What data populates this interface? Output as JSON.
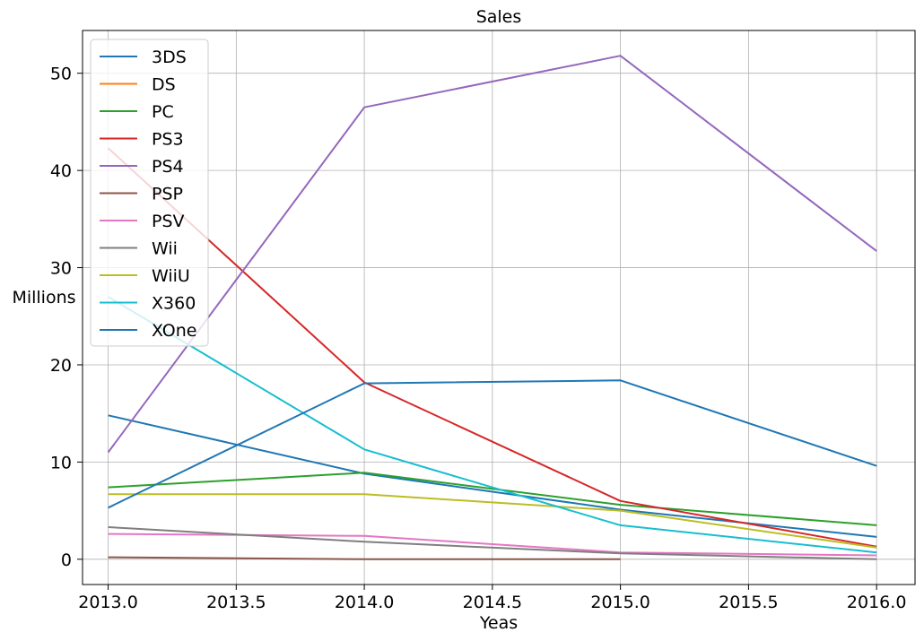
{
  "chart_data": {
    "type": "line",
    "title": "Sales",
    "xlabel": "Yeas",
    "ylabel": "Millions",
    "xlim": [
      2012.9,
      2016.15
    ],
    "ylim": [
      -2.6,
      54.4
    ],
    "xticks": [
      2013.0,
      2013.5,
      2014.0,
      2014.5,
      2015.0,
      2015.5,
      2016.0
    ],
    "xtick_labels": [
      "2013.0",
      "2013.5",
      "2014.0",
      "2014.5",
      "2015.0",
      "2015.5",
      "2016.0"
    ],
    "yticks": [
      0,
      10,
      20,
      30,
      40,
      50
    ],
    "ytick_labels": [
      "0",
      "10",
      "20",
      "30",
      "40",
      "50"
    ],
    "grid": true,
    "legend_position": "top-left",
    "series": [
      {
        "name": "3DS",
        "color": "#1f77b4",
        "x": [
          2013,
          2014,
          2015,
          2016
        ],
        "y": [
          14.8,
          8.8,
          5.1,
          2.3
        ]
      },
      {
        "name": "DS",
        "color": "#ff7f0e",
        "x": [
          2013
        ],
        "y": [
          0.2
        ]
      },
      {
        "name": "PC",
        "color": "#2ca02c",
        "x": [
          2013,
          2014,
          2015,
          2016
        ],
        "y": [
          7.4,
          8.9,
          5.6,
          3.5
        ]
      },
      {
        "name": "PS3",
        "color": "#d62728",
        "x": [
          2013,
          2014,
          2015,
          2016
        ],
        "y": [
          42.3,
          18.2,
          6.0,
          1.3
        ]
      },
      {
        "name": "PS4",
        "color": "#9467bd",
        "x": [
          2013,
          2014,
          2015,
          2016
        ],
        "y": [
          11.0,
          46.5,
          51.8,
          31.7
        ]
      },
      {
        "name": "PSP",
        "color": "#8c564b",
        "x": [
          2013,
          2014,
          2015
        ],
        "y": [
          0.2,
          0.0,
          0.0
        ]
      },
      {
        "name": "PSV",
        "color": "#e377c2",
        "x": [
          2013,
          2014,
          2015,
          2016
        ],
        "y": [
          2.6,
          2.4,
          0.7,
          0.4
        ]
      },
      {
        "name": "Wii",
        "color": "#7f7f7f",
        "x": [
          2013,
          2014,
          2015,
          2016
        ],
        "y": [
          3.3,
          1.8,
          0.6,
          0.0
        ]
      },
      {
        "name": "WiiU",
        "color": "#bcbd22",
        "x": [
          2013,
          2014,
          2015,
          2016
        ],
        "y": [
          6.7,
          6.7,
          5.0,
          1.2
        ]
      },
      {
        "name": "X360",
        "color": "#17becf",
        "x": [
          2013,
          2014,
          2015,
          2016
        ],
        "y": [
          27.0,
          11.3,
          3.5,
          0.7
        ]
      },
      {
        "name": "XOne",
        "color": "#1f77b4",
        "x": [
          2013,
          2014,
          2015,
          2016
        ],
        "y": [
          5.3,
          18.1,
          18.4,
          9.6
        ]
      }
    ]
  }
}
